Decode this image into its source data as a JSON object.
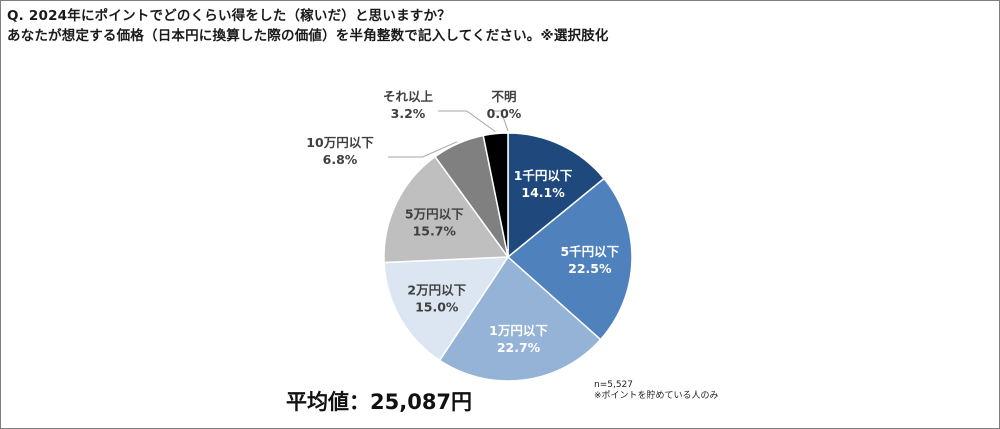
{
  "title": {
    "line1": "Q. 2024年にポイントでどのくらい得をした（稼いだ）と思いますか？",
    "line2": "あなたが想定する価格（日本円に換算した際の価値）を半角整数で記入してください。※選択肢化"
  },
  "average": "平均値：25,087円",
  "notes": {
    "n": "n=5,527",
    "scope": "※ポイントを貯めている人のみ"
  },
  "chart_data": {
    "type": "pie",
    "start_angle_deg": 0,
    "direction": "clockwise",
    "slices": [
      {
        "label": "1千円以下",
        "value": 14.1,
        "value_label": "14.1%",
        "color": "#1f497d",
        "label_color": "#ffffff",
        "label_placement": "inside"
      },
      {
        "label": "5千円以下",
        "value": 22.5,
        "value_label": "22.5%",
        "color": "#4f81bd",
        "label_color": "#ffffff",
        "label_placement": "inside"
      },
      {
        "label": "1万円以下",
        "value": 22.7,
        "value_label": "22.7%",
        "color": "#95b3d7",
        "label_color": "#ffffff",
        "label_placement": "inside"
      },
      {
        "label": "2万円以下",
        "value": 15.0,
        "value_label": "15.0%",
        "color": "#dce6f2",
        "label_color": "#404040",
        "label_placement": "inside"
      },
      {
        "label": "5万円以下",
        "value": 15.7,
        "value_label": "15.7%",
        "color": "#bfbfbf",
        "label_color": "#404040",
        "label_placement": "inside"
      },
      {
        "label": "10万円以下",
        "value": 6.8,
        "value_label": "6.8%",
        "color": "#808080",
        "label_color": "#404040",
        "label_placement": "outside"
      },
      {
        "label": "それ以上",
        "value": 3.2,
        "value_label": "3.2%",
        "color": "#000000",
        "label_color": "#404040",
        "label_placement": "outside"
      },
      {
        "label": "不明",
        "value": 0.0,
        "value_label": "0.0%",
        "color": "#000000",
        "label_color": "#404040",
        "label_placement": "outside"
      }
    ]
  }
}
